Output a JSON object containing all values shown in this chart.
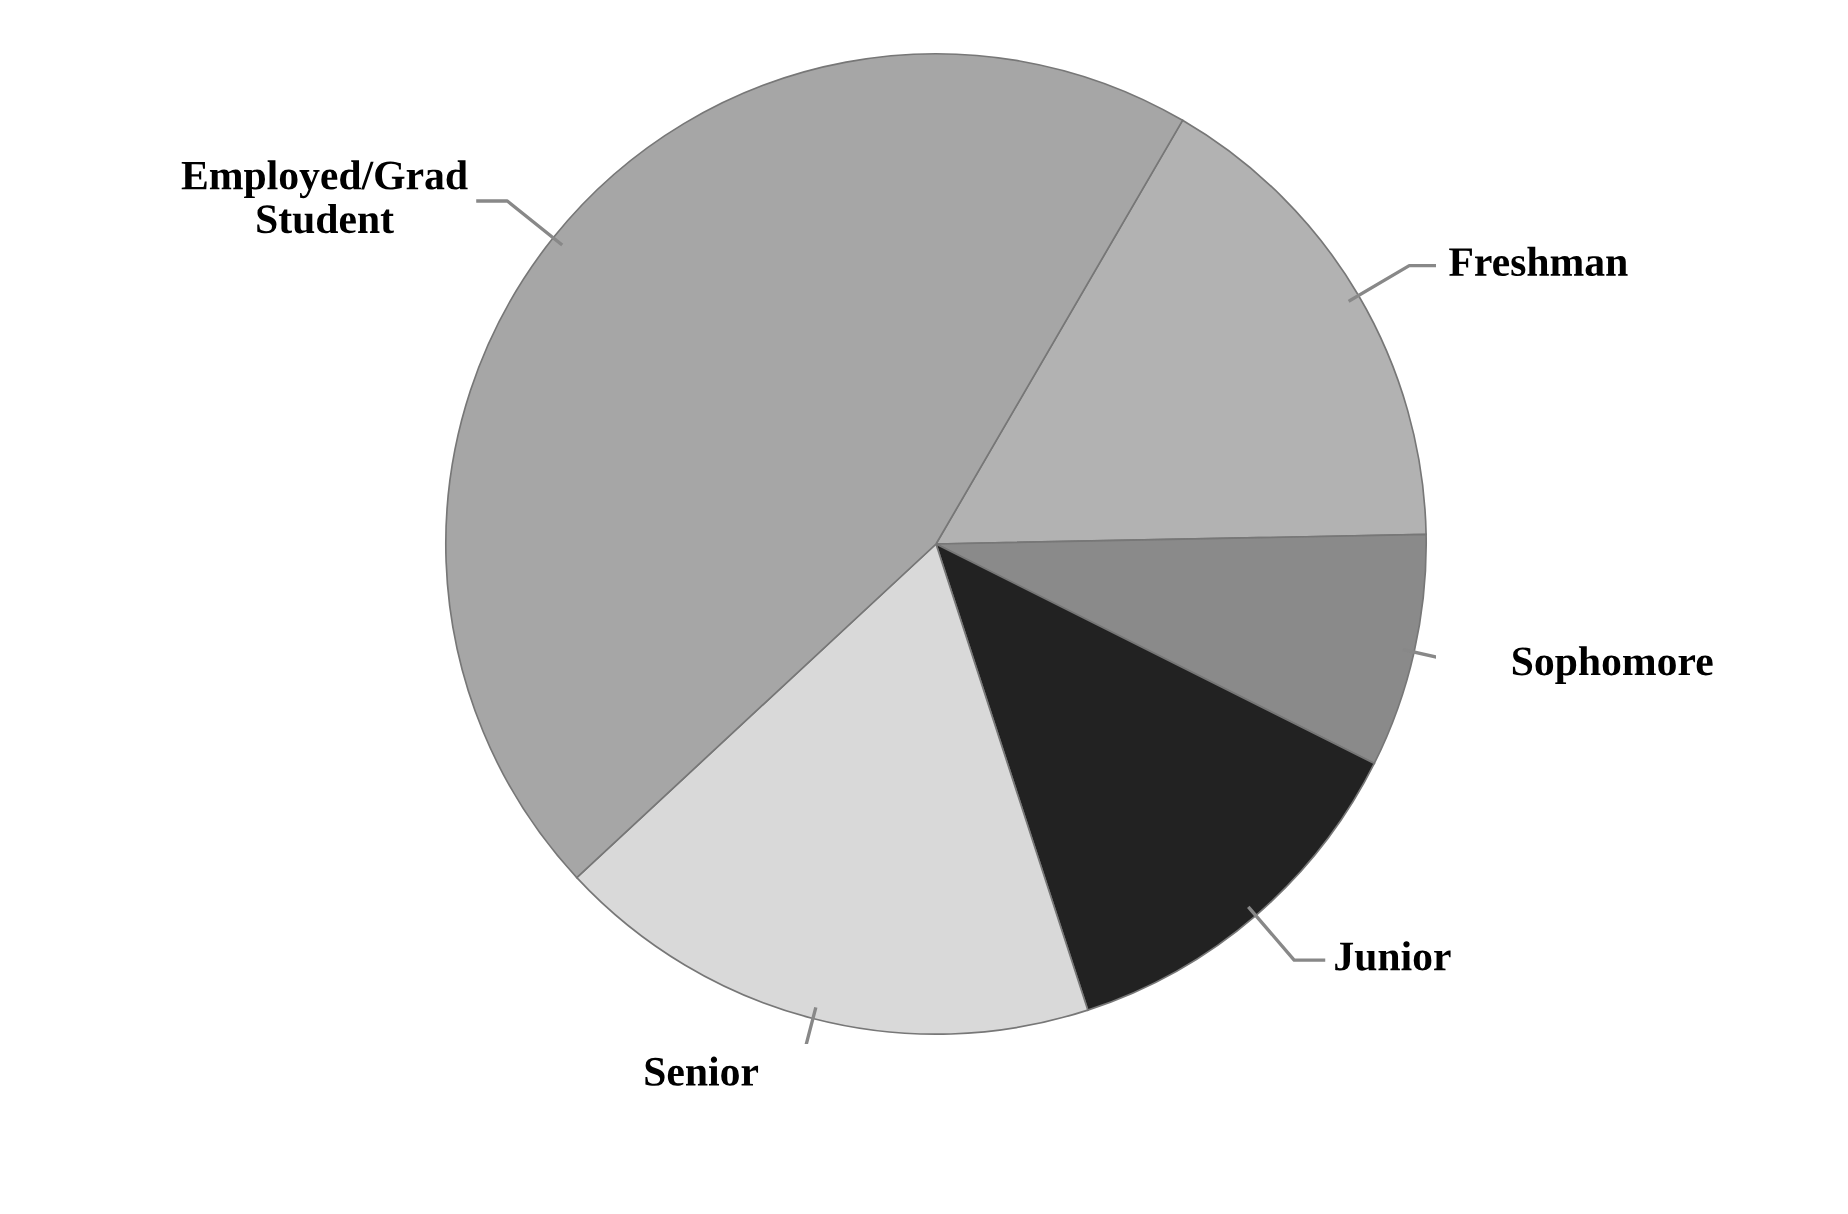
{
  "chart_data": {
    "type": "pie",
    "categories": [
      "Freshman",
      "Sophomore",
      "Junior",
      "Senior",
      "Employed/Grad Student"
    ],
    "values": [
      16.3,
      7.7,
      12.6,
      18.1,
      45.3
    ],
    "colors": [
      "#b2b2b2",
      "#8a8a8a",
      "#222222",
      "#d9d9d9",
      "#a6a6a6"
    ],
    "legend": false
  }
}
